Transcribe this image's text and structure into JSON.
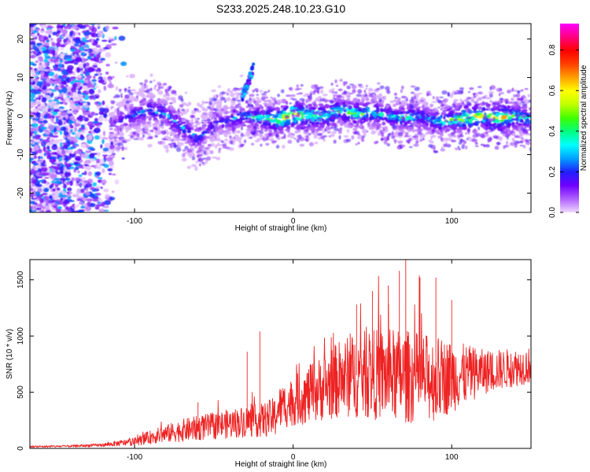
{
  "chart_data": [
    {
      "type": "heatmap",
      "title": "S233.2025.248.10.23.G10",
      "xlabel": "Height of straight line (km)",
      "ylabel": "Frequency (Hz)",
      "xlim": [
        -166,
        150
      ],
      "ylim": [
        -25,
        24
      ],
      "xticks": [
        -100,
        0,
        100
      ],
      "xtick_labels": [
        "-100",
        "0",
        "100"
      ],
      "yticks": [
        -20,
        -10,
        0,
        10,
        20
      ],
      "ytick_labels": [
        "-20",
        "-10",
        "0",
        "10",
        "20"
      ],
      "colorbar": {
        "label": "Normalized spectral amplitude",
        "range": [
          0.0,
          0.93
        ],
        "ticks": [
          0.0,
          0.2,
          0.4,
          0.6,
          0.8
        ],
        "tick_labels": [
          "0.0",
          "0.2",
          "0.4",
          "0.6",
          "0.8"
        ],
        "colors": [
          "#f0d8ff",
          "#b060ff",
          "#7000ff",
          "#2020ff",
          "#00a0ff",
          "#00ffff",
          "#00ff80",
          "#40ff00",
          "#c0ff00",
          "#ffff00",
          "#ffa000",
          "#ff4000",
          "#ff0000",
          "#ff0080",
          "#ff00ff"
        ]
      },
      "ridge": {
        "x": [
          -115,
          -100,
          -90,
          -80,
          -70,
          -60,
          -50,
          -40,
          -30,
          -20,
          -10,
          0,
          10,
          20,
          30,
          40,
          50,
          60,
          70,
          80,
          90,
          100,
          110,
          120,
          130,
          140,
          150
        ],
        "frequency": [
          -2.5,
          0.5,
          1.5,
          0.5,
          -3,
          -6,
          -2,
          -1,
          0,
          -0.5,
          -1,
          0.5,
          0,
          0,
          1.5,
          0.5,
          1,
          0,
          -0.5,
          0,
          -1.5,
          -1,
          -0.5,
          0,
          -0.5,
          0,
          -1
        ],
        "peak_amplitude": [
          0.15,
          0.3,
          0.35,
          0.3,
          0.35,
          0.3,
          0.25,
          0.3,
          0.35,
          0.5,
          0.7,
          0.85,
          0.6,
          0.55,
          0.5,
          0.55,
          0.45,
          0.4,
          0.45,
          0.4,
          0.4,
          0.55,
          0.75,
          0.65,
          0.8,
          0.55,
          0.4
        ]
      },
      "spur": {
        "x": [
          -32,
          -28,
          -25
        ],
        "frequency": [
          5,
          9,
          13
        ]
      },
      "noise_region": {
        "x_range": [
          -166,
          -106
        ],
        "frequency_range": [
          -25,
          24
        ]
      }
    },
    {
      "type": "line",
      "xlabel": "Height of straight line (km)",
      "ylabel": "SNR (10 * v/v)",
      "xlim": [
        -166,
        150
      ],
      "ylim": [
        0,
        1680
      ],
      "xticks": [
        -100,
        0,
        100
      ],
      "xtick_labels": [
        "-100",
        "0",
        "100"
      ],
      "yticks": [
        0,
        500,
        1000,
        1500
      ],
      "ytick_labels": [
        "0",
        "500",
        "1000",
        "1500"
      ],
      "color": "#ee2222",
      "envelope": {
        "x": [
          -166,
          -140,
          -120,
          -100,
          -90,
          -80,
          -70,
          -60,
          -50,
          -40,
          -30,
          -20,
          -11,
          -10,
          0,
          10,
          20,
          30,
          40,
          50,
          60,
          70,
          80,
          90,
          100,
          110,
          120,
          130,
          140,
          150
        ],
        "mean": [
          15,
          20,
          30,
          60,
          100,
          130,
          160,
          180,
          200,
          220,
          240,
          250,
          280,
          350,
          420,
          480,
          550,
          620,
          650,
          660,
          650,
          640,
          630,
          620,
          640,
          660,
          680,
          700,
          720,
          740
        ],
        "spread": [
          8,
          10,
          15,
          35,
          60,
          80,
          100,
          110,
          120,
          130,
          140,
          150,
          180,
          190,
          220,
          260,
          300,
          350,
          380,
          400,
          420,
          420,
          400,
          380,
          320,
          260,
          200,
          180,
          170,
          160
        ]
      },
      "spikes": [
        {
          "x": -60,
          "y": 410
        },
        {
          "x": -29,
          "y": 860
        },
        {
          "x": -21,
          "y": 1040
        },
        {
          "x": 40,
          "y": 1280
        },
        {
          "x": 50,
          "y": 1400
        },
        {
          "x": 60,
          "y": 1450
        },
        {
          "x": 67,
          "y": 1580
        },
        {
          "x": 71,
          "y": 1680
        },
        {
          "x": 80,
          "y": 1520
        },
        {
          "x": 90,
          "y": 1520
        },
        {
          "x": 100,
          "y": 1320
        }
      ]
    }
  ]
}
